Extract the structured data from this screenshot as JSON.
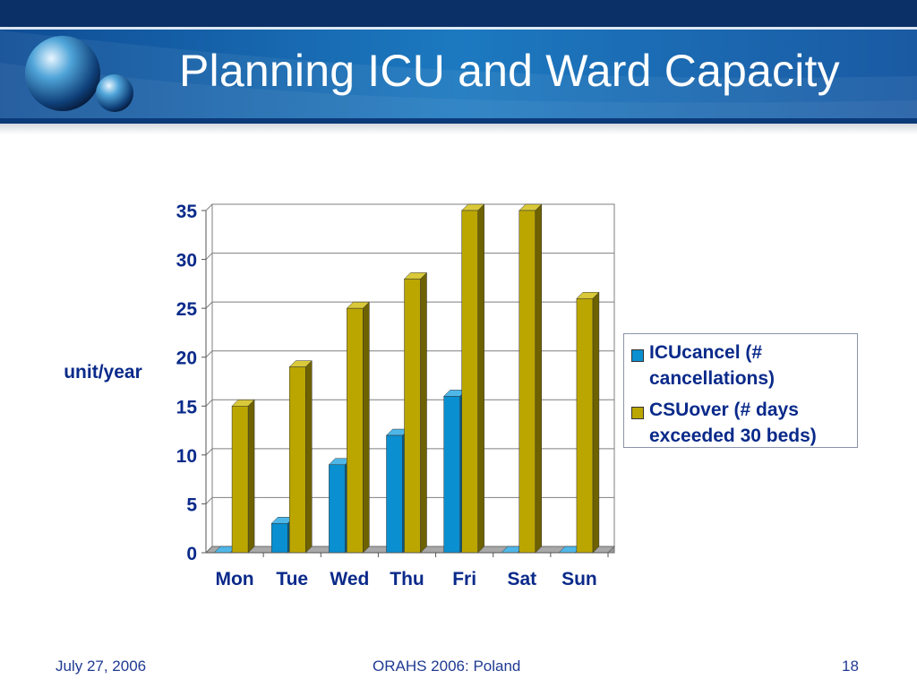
{
  "slide": {
    "title": "Planning ICU and Ward Capacity",
    "footer_date": "July 27, 2006",
    "footer_center": "ORAHS 2006: Poland",
    "page_number": "18"
  },
  "colors": {
    "header_dark": "#0c3b7e",
    "header_mid": "#1a78bf",
    "icu": "#0a8fd0",
    "csu": "#bba600",
    "text_blue": "#0a2a8a"
  },
  "chart_data": {
    "type": "bar",
    "style": "3d-clustered",
    "categories": [
      "Mon",
      "Tue",
      "Wed",
      "Thu",
      "Fri",
      "Sat",
      "Sun"
    ],
    "series": [
      {
        "name": "ICUcancel (# cancellations)",
        "values": [
          0,
          3,
          9,
          12,
          16,
          0,
          0
        ]
      },
      {
        "name": "CSUover (# days exceeded 30 beds)",
        "values": [
          15,
          19,
          25,
          28,
          35,
          35,
          26
        ]
      }
    ],
    "ylabel": "unit/year",
    "ylim": [
      0,
      35
    ],
    "yticks": [
      0,
      5,
      10,
      15,
      20,
      25,
      30,
      35
    ],
    "grid": true,
    "legend": "right"
  }
}
